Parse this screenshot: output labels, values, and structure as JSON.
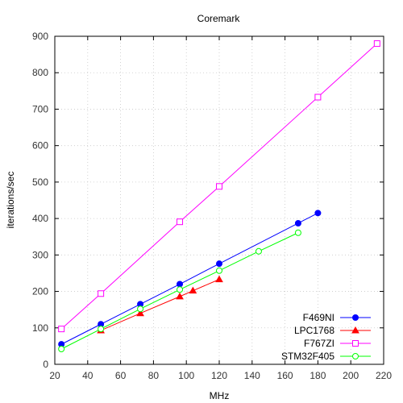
{
  "chart_data": {
    "type": "line",
    "title": "Coremark",
    "xlabel": "MHz",
    "ylabel": "iterations/sec",
    "xlim": [
      20,
      220
    ],
    "ylim": [
      0,
      900
    ],
    "xticks": [
      20,
      40,
      60,
      80,
      100,
      120,
      140,
      160,
      180,
      200,
      220
    ],
    "yticks": [
      0,
      100,
      200,
      300,
      400,
      500,
      600,
      700,
      800,
      900
    ],
    "grid": true,
    "legend_position": "bottom-right",
    "series": [
      {
        "name": "F469NI",
        "color": "#0000ff",
        "marker": "filled-circle",
        "points": [
          [
            24,
            55
          ],
          [
            48,
            110
          ],
          [
            72,
            165
          ],
          [
            96,
            220
          ],
          [
            120,
            276
          ],
          [
            168,
            387
          ],
          [
            180,
            415
          ]
        ]
      },
      {
        "name": "LPC1768",
        "color": "#ff0000",
        "marker": "filled-triangle",
        "points": [
          [
            48,
            93
          ],
          [
            72,
            140
          ],
          [
            96,
            186
          ],
          [
            104,
            202
          ],
          [
            120,
            233
          ]
        ]
      },
      {
        "name": "F767ZI",
        "color": "#ff00ff",
        "marker": "open-square",
        "points": [
          [
            24,
            97
          ],
          [
            48,
            194
          ],
          [
            96,
            391
          ],
          [
            120,
            488
          ],
          [
            180,
            733
          ],
          [
            216,
            880
          ]
        ]
      },
      {
        "name": "STM32F405",
        "color": "#00ff00",
        "marker": "open-circle",
        "points": [
          [
            24,
            42
          ],
          [
            48,
            97
          ],
          [
            72,
            152
          ],
          [
            96,
            205
          ],
          [
            120,
            257
          ],
          [
            144,
            310
          ],
          [
            168,
            361
          ]
        ]
      }
    ]
  }
}
